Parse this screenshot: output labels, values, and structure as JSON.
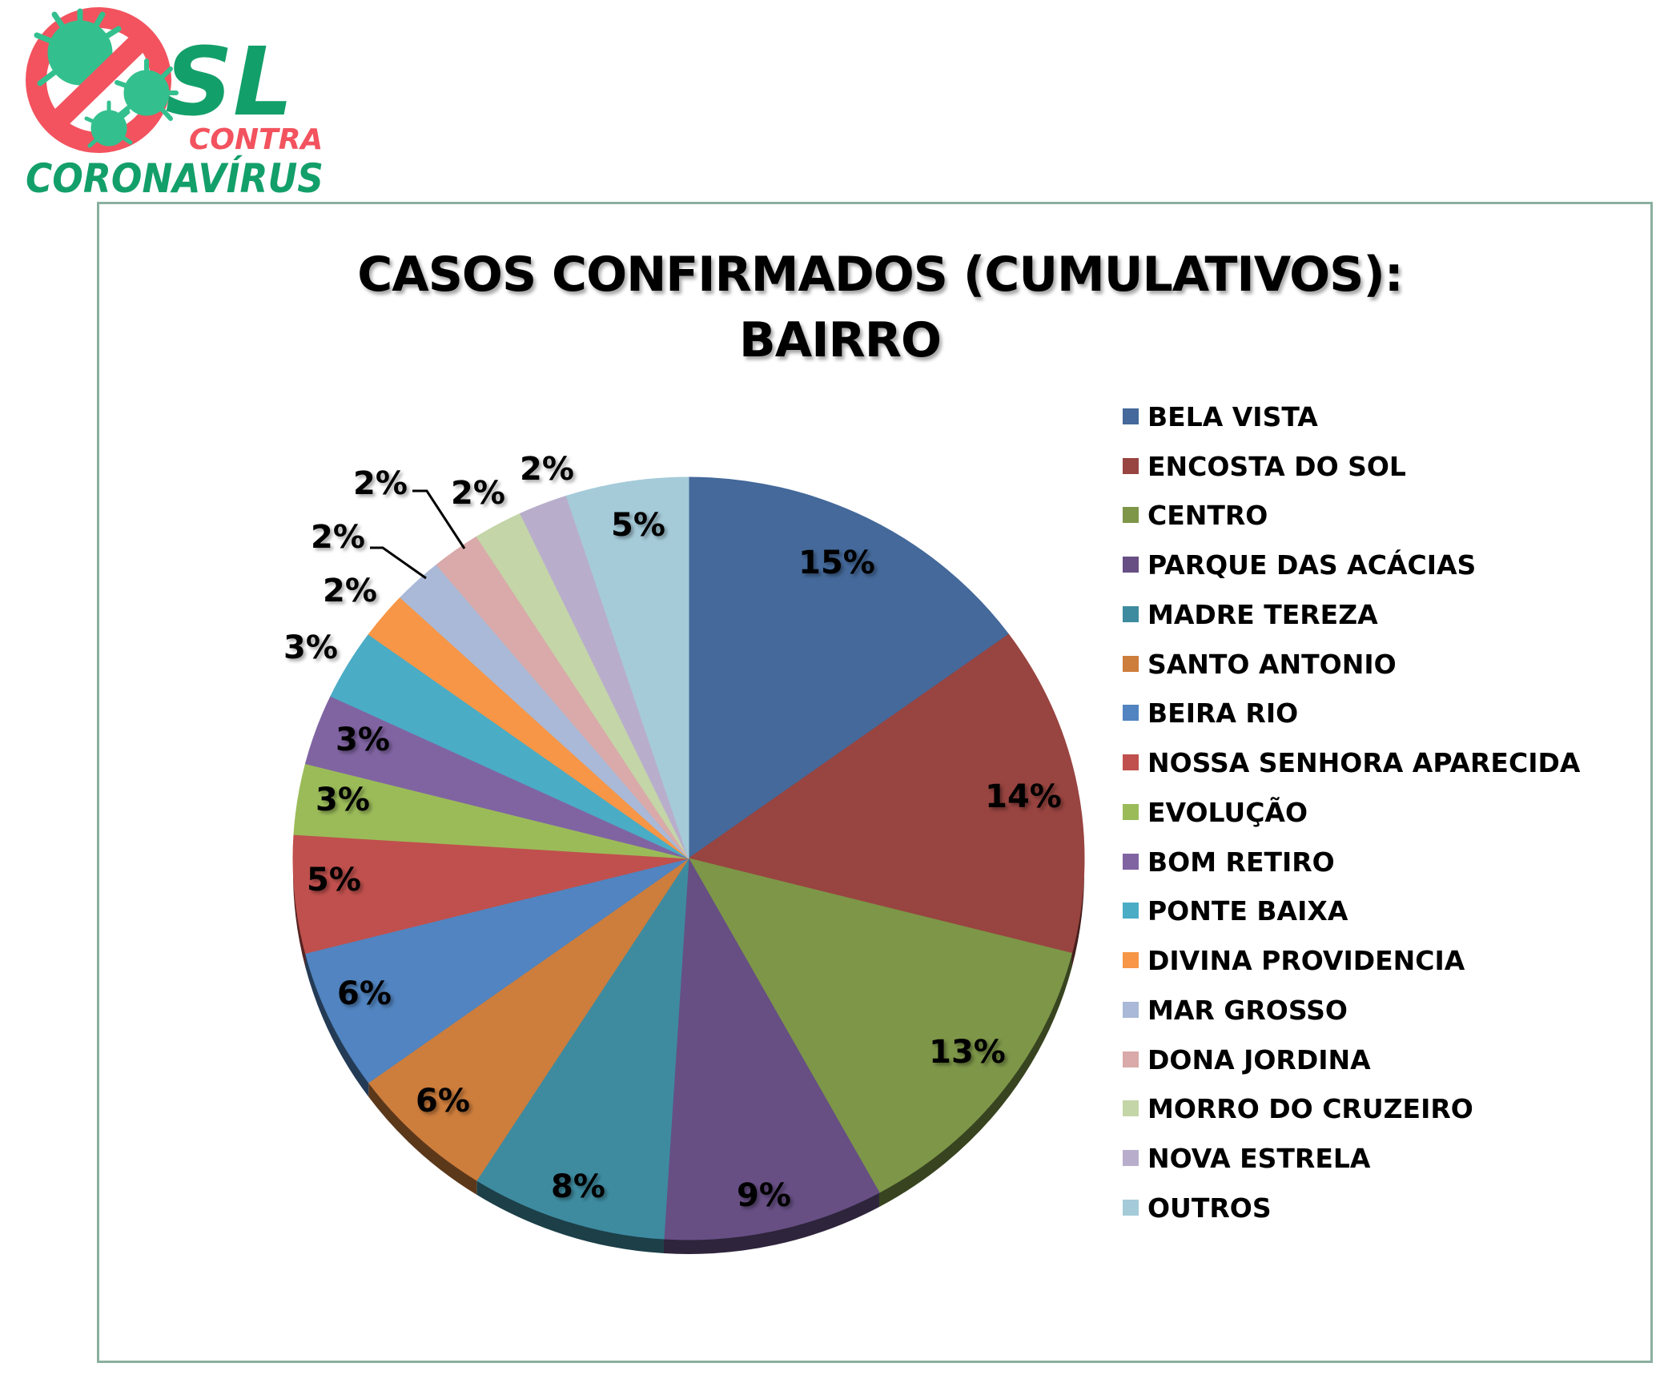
{
  "logo": {
    "title_main": "SL",
    "title_sub": "CONTRA",
    "title_bottom": "CORONAVÍRUS",
    "icon": "no-virus-icon",
    "colors": {
      "green": "#139f6a",
      "red": "#f2535e",
      "virus": "#33c08e"
    }
  },
  "chart": {
    "title_line1": "CASOS CONFIRMADOS (CUMULATIVOS):",
    "title_line2": "BAIRRO",
    "frame_color": "#8aaf9f"
  },
  "legend": [
    {
      "label": "BELA VISTA",
      "color": "#44699a"
    },
    {
      "label": "ENCOSTA DO SOL",
      "color": "#984440"
    },
    {
      "label": "CENTRO",
      "color": "#7d9648"
    },
    {
      "label": "PARQUE DAS ACÁCIAS",
      "color": "#674f84"
    },
    {
      "label": "MADRE TEREZA",
      "color": "#3e8ba0"
    },
    {
      "label": "SANTO ANTONIO",
      "color": "#cd7d3c"
    },
    {
      "label": "BEIRA RIO",
      "color": "#5184c0"
    },
    {
      "label": "NOSSA SENHORA APARECIDA",
      "color": "#c0504d"
    },
    {
      "label": "EVOLUÇÃO",
      "color": "#9bbb59"
    },
    {
      "label": "BOM RETIRO",
      "color": "#8064a2"
    },
    {
      "label": "PONTE BAIXA",
      "color": "#4bacc6"
    },
    {
      "label": "DIVINA PROVIDENCIA",
      "color": "#f79646"
    },
    {
      "label": "MAR GROSSO",
      "color": "#a9b9d7"
    },
    {
      "label": "DONA JORDINA",
      "color": "#d9aaa9"
    },
    {
      "label": "MORRO DO CRUZEIRO",
      "color": "#c4d5a8"
    },
    {
      "label": "NOVA ESTRELA",
      "color": "#b8aecb"
    },
    {
      "label": "OUTROS",
      "color": "#a5cbd9"
    }
  ],
  "chart_data": {
    "type": "pie",
    "title": "CASOS CONFIRMADOS (CUMULATIVOS): BAIRRO",
    "categories": [
      "BELA VISTA",
      "ENCOSTA DO SOL",
      "CENTRO",
      "PARQUE DAS ACÁCIAS",
      "MADRE TEREZA",
      "SANTO ANTONIO",
      "BEIRA RIO",
      "NOSSA SENHORA APARECIDA",
      "EVOLUÇÃO",
      "BOM RETIRO",
      "PONTE BAIXA",
      "DIVINA PROVIDENCIA",
      "MAR GROSSO",
      "DONA JORDINA",
      "MORRO DO CRUZEIRO",
      "NOVA ESTRELA",
      "OUTROS"
    ],
    "values": [
      15,
      14,
      13,
      9,
      8,
      6,
      6,
      5,
      3,
      3,
      3,
      2,
      2,
      2,
      2,
      2,
      5
    ],
    "labels": [
      "15%",
      "14%",
      "13%",
      "9%",
      "8%",
      "6%",
      "6%",
      "5%",
      "3%",
      "3%",
      "3%",
      "2%",
      "2%",
      "2%",
      "2%",
      "2%",
      "5%"
    ],
    "unit": "%",
    "legend_position": "right",
    "start_angle_deg": 0,
    "direction": "clockwise",
    "style": "3d-tilted"
  }
}
